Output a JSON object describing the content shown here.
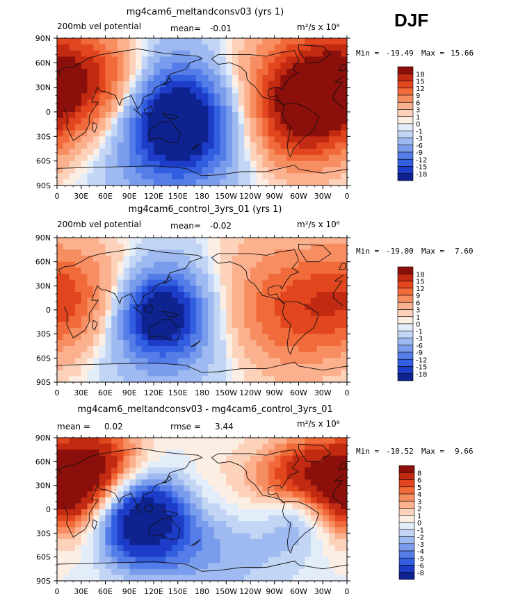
{
  "season": "DJF",
  "colors": {
    "border": "#000000",
    "coast": "#111111",
    "scale_p1": [
      "#fdeee4",
      "#fcd2bb",
      "#fbb08e",
      "#f78e62",
      "#f06a3a",
      "#e2461f",
      "#c22a12",
      "#8b0f0a"
    ],
    "scale_n1": [
      "#e3edf9",
      "#c3d5f4",
      "#9fbaf0",
      "#7a9ced",
      "#557de8",
      "#325ee0",
      "#1d3dc8",
      "#0e2290",
      "#0a1460"
    ]
  },
  "chart_data": [
    {
      "type": "heatmap",
      "name": "panel-1",
      "title": "mg4cam6_meltandconsv03 (yrs 1)",
      "left_label": "200mb vel potential",
      "mean_label": "mean=",
      "mean_value": "-0.01",
      "units": "m²/s x 10⁶",
      "min_label": "Min =",
      "min_value": "-19.49",
      "max_label": "Max =",
      "max_value": "15.66",
      "x_ticks": [
        "0",
        "30E",
        "60E",
        "90E",
        "120E",
        "150E",
        "180",
        "150W",
        "120W",
        "90W",
        "60W",
        "30W",
        "0"
      ],
      "y_ticks": [
        "90N",
        "60N",
        "30N",
        "0",
        "30S",
        "60S",
        "90S"
      ],
      "levels": [
        "18",
        "15",
        "12",
        "9",
        "6",
        "3",
        "1",
        "0",
        "-1",
        "-3",
        "-6",
        "-9",
        "-12",
        "-15",
        "-18"
      ],
      "xlim": [
        0,
        360
      ],
      "ylim": [
        -90,
        90
      ],
      "field": [
        {
          "lon": 150,
          "lat": -12,
          "value": -19.49,
          "spread": 45
        },
        {
          "lon": 145,
          "lat": -5,
          "value": -9,
          "spread": 80
        },
        {
          "lon": 20,
          "lat": 35,
          "value": 12,
          "spread": 50
        },
        {
          "lon": 70,
          "lat": 40,
          "value": 8,
          "spread": 45
        },
        {
          "lon": 310,
          "lat": 30,
          "value": 15.66,
          "spread": 55
        },
        {
          "lon": 295,
          "lat": -15,
          "value": 10,
          "spread": 45
        },
        {
          "lon": 215,
          "lat": 50,
          "value": 3,
          "spread": 45
        }
      ]
    },
    {
      "type": "heatmap",
      "name": "panel-2",
      "title": "mg4cam6_control_3yrs_01 (yrs 1)",
      "left_label": "200mb vel potential",
      "mean_label": "mean=",
      "mean_value": "-0.02",
      "units": "m²/s x 10⁶",
      "min_label": "Min =",
      "min_value": "-19.00",
      "max_label": "Max =",
      "max_value": "7.60",
      "x_ticks": [
        "0",
        "30E",
        "60E",
        "90E",
        "120E",
        "150E",
        "180",
        "150W",
        "120W",
        "90W",
        "60W",
        "30W",
        "0"
      ],
      "y_ticks": [
        "90N",
        "60N",
        "30N",
        "0",
        "30S",
        "60S",
        "90S"
      ],
      "levels": [
        "18",
        "15",
        "12",
        "9",
        "6",
        "3",
        "1",
        "0",
        "-1",
        "-3",
        "-6",
        "-9",
        "-12",
        "-15",
        "-18"
      ],
      "xlim": [
        0,
        360
      ],
      "ylim": [
        -90,
        90
      ],
      "field": [
        {
          "lon": 128,
          "lat": -5,
          "value": -19.0,
          "spread": 35
        },
        {
          "lon": 135,
          "lat": -10,
          "value": -8,
          "spread": 70
        },
        {
          "lon": 10,
          "lat": 10,
          "value": 7.6,
          "spread": 45
        },
        {
          "lon": 60,
          "lat": 30,
          "value": 5,
          "spread": 50
        },
        {
          "lon": 320,
          "lat": 10,
          "value": 7,
          "spread": 55
        },
        {
          "lon": 270,
          "lat": -20,
          "value": 6,
          "spread": 50
        },
        {
          "lon": 230,
          "lat": 40,
          "value": 4,
          "spread": 55
        }
      ]
    },
    {
      "type": "heatmap",
      "name": "panel-3",
      "title": "mg4cam6_meltandconsv03 - mg4cam6_control_3yrs_01",
      "left_label": "mean =",
      "left_value": "0.02",
      "mid_label": "rmse =",
      "mid_value": "3.44",
      "units": "m²/s x 10⁶",
      "min_label": "Min =",
      "min_value": "-10.52",
      "max_label": "Max =",
      "max_value": "9.66",
      "x_ticks": [
        "0",
        "30E",
        "60E",
        "90E",
        "120E",
        "150E",
        "180",
        "150W",
        "120W",
        "90W",
        "60W",
        "30W",
        "0"
      ],
      "y_ticks": [
        "90N",
        "60N",
        "30N",
        "0",
        "30S",
        "60S",
        "90S"
      ],
      "levels": [
        "8",
        "6",
        "5",
        "4",
        "3",
        "2",
        "1",
        "0",
        "-1",
        "-2",
        "-3",
        "-4",
        "-5",
        "-6",
        "-8"
      ],
      "xlim": [
        0,
        360
      ],
      "ylim": [
        -90,
        90
      ],
      "field": [
        {
          "lon": 95,
          "lat": -5,
          "value": -10.52,
          "spread": 40
        },
        {
          "lon": 150,
          "lat": -20,
          "value": -4,
          "spread": 55
        },
        {
          "lon": 20,
          "lat": 30,
          "value": 9.66,
          "spread": 45
        },
        {
          "lon": 70,
          "lat": 50,
          "value": 5,
          "spread": 40
        },
        {
          "lon": 300,
          "lat": 30,
          "value": 8,
          "spread": 40
        },
        {
          "lon": 300,
          "lat": -5,
          "value": -6,
          "spread": 30
        },
        {
          "lon": 240,
          "lat": -40,
          "value": -2,
          "spread": 60
        },
        {
          "lon": 190,
          "lat": 20,
          "value": 3,
          "spread": 45
        }
      ]
    }
  ]
}
